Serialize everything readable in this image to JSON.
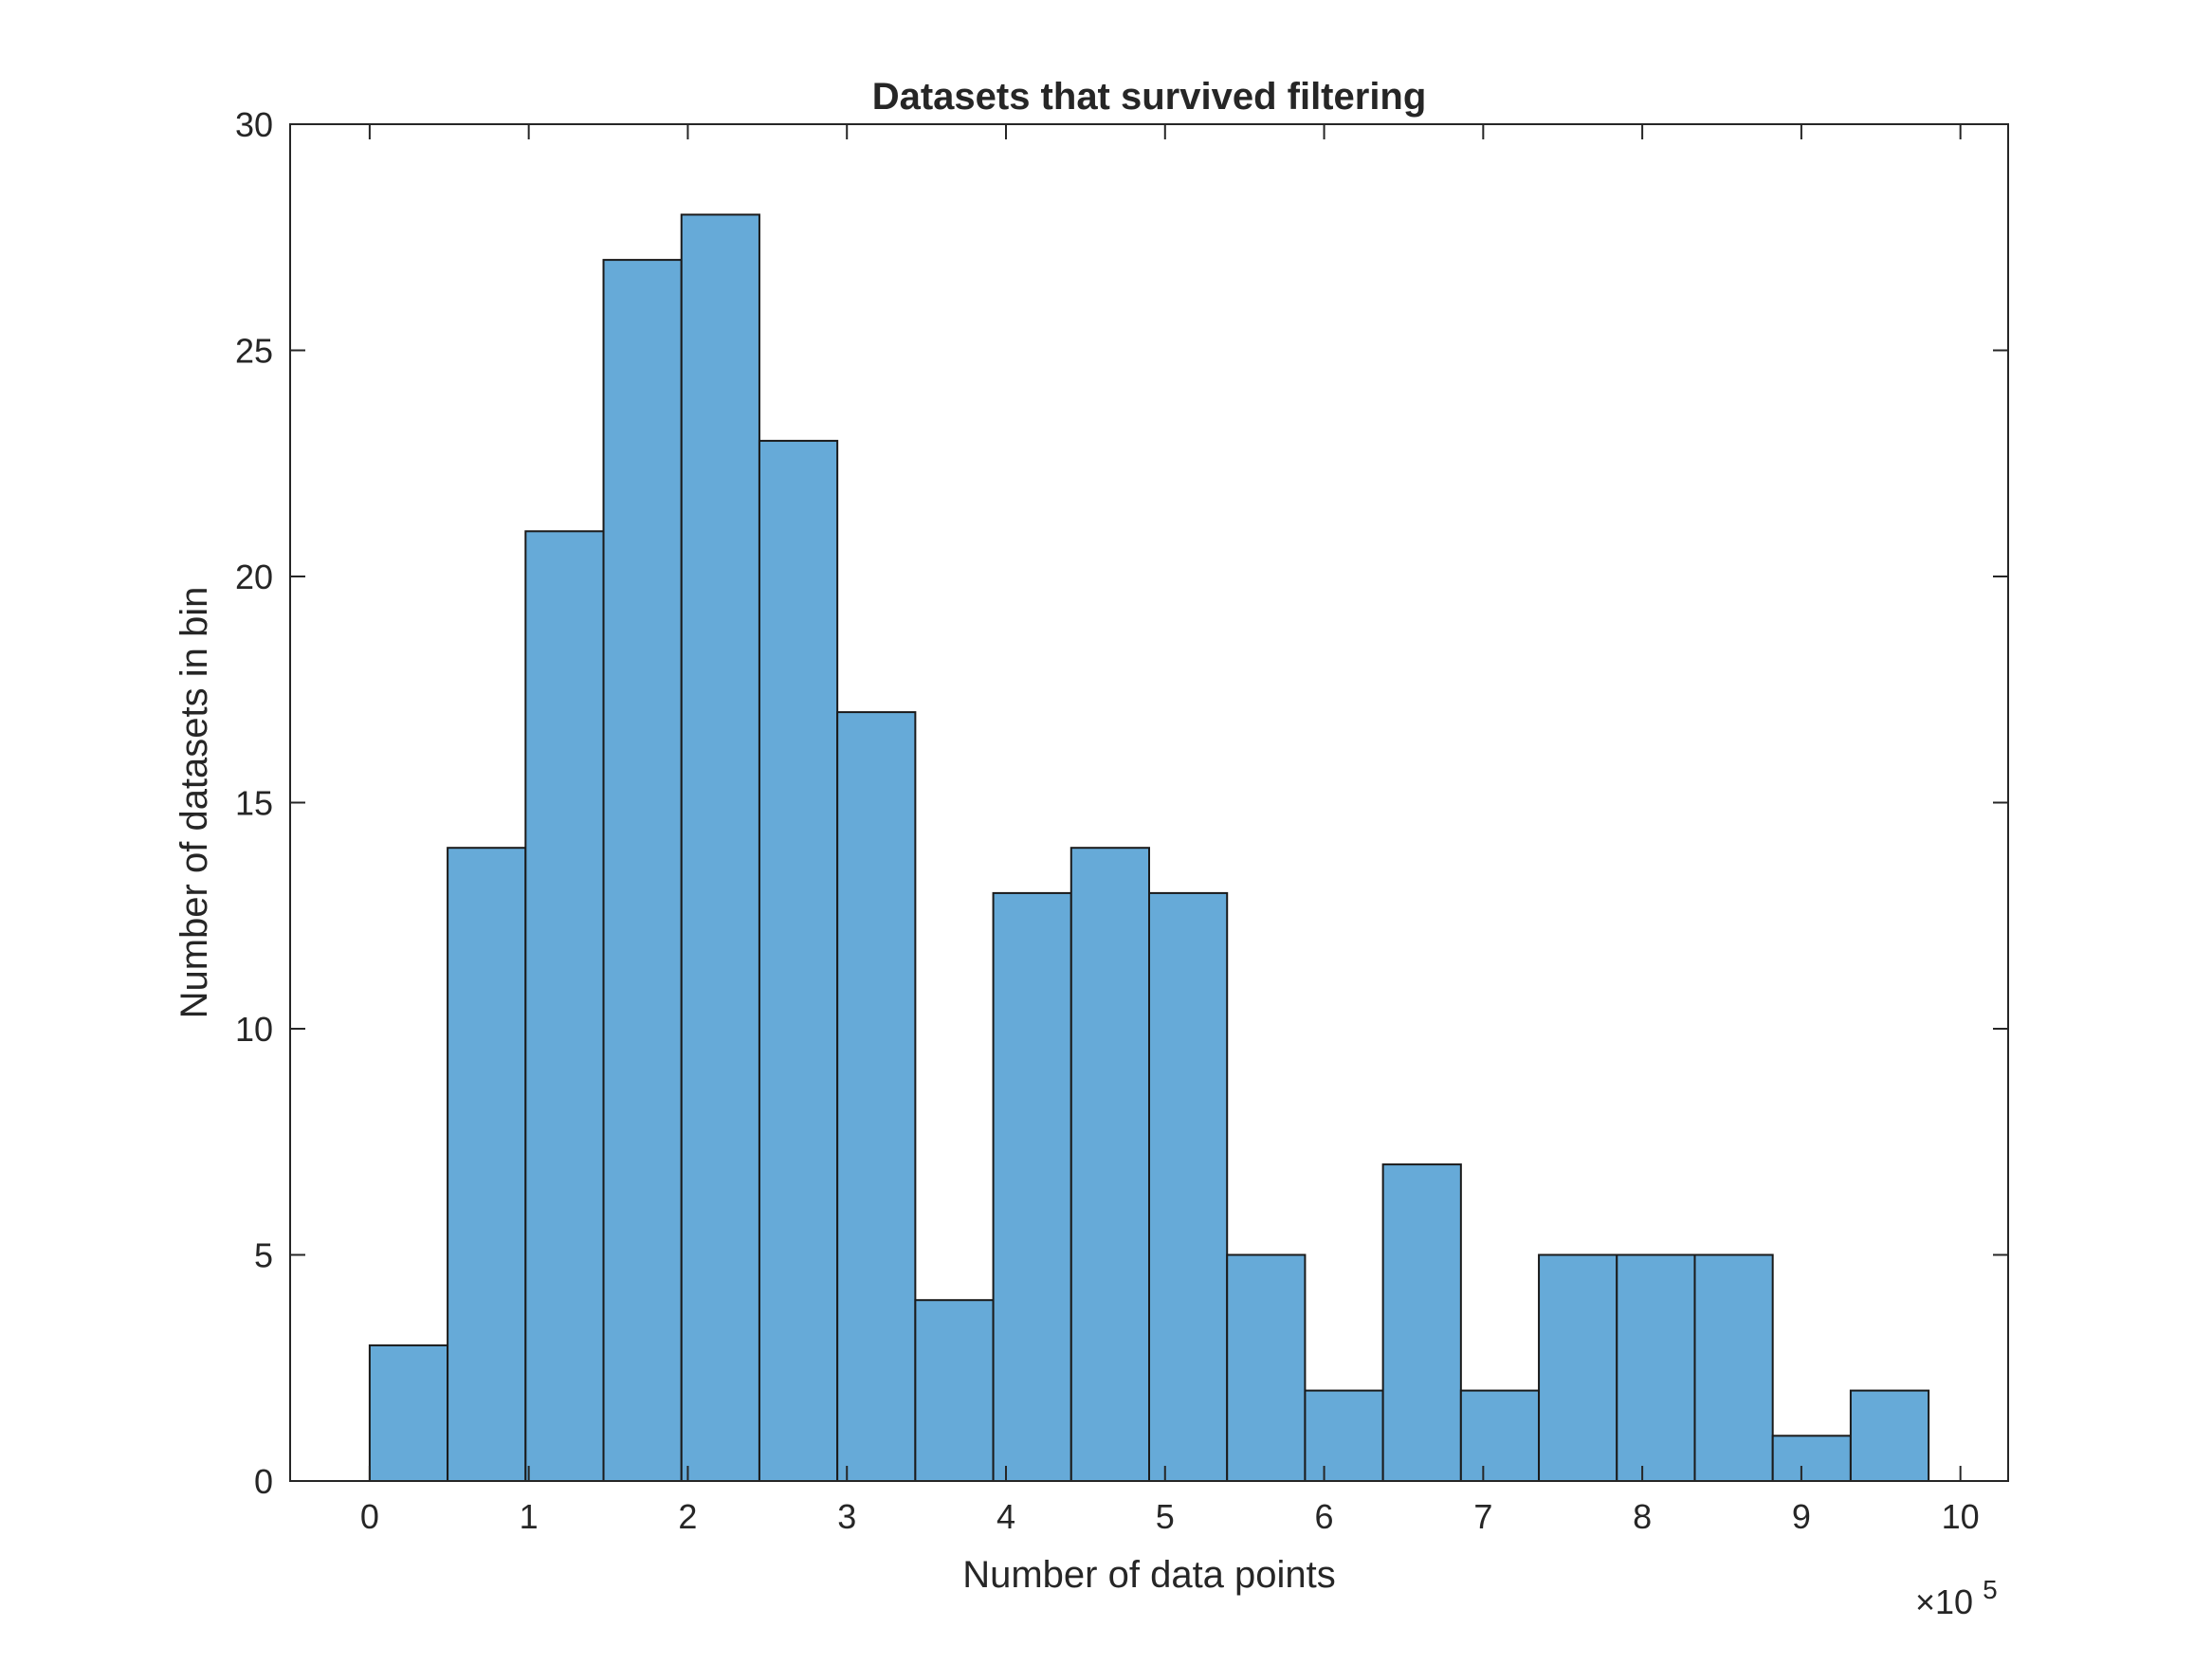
{
  "chart_data": {
    "type": "bar",
    "title": "Datasets that survived filtering",
    "xlabel": "Number of data points",
    "ylabel": "Number of datasets in bin",
    "x_multiplier_label": "×10",
    "x_multiplier_exponent": "5",
    "xlim": [
      -0.5,
      10.3
    ],
    "ylim": [
      0,
      30
    ],
    "xticks": [
      0,
      1,
      2,
      3,
      4,
      5,
      6,
      7,
      8,
      9,
      10
    ],
    "xtick_labels": [
      "0",
      "1",
      "2",
      "3",
      "4",
      "5",
      "6",
      "7",
      "8",
      "9",
      "10"
    ],
    "yticks": [
      0,
      5,
      10,
      15,
      20,
      25,
      30
    ],
    "ytick_labels": [
      "0",
      "5",
      "10",
      "15",
      "20",
      "25",
      "30"
    ],
    "bin_edges": [
      0,
      0.49,
      0.98,
      1.47,
      1.96,
      2.45,
      2.94,
      3.43,
      3.92,
      4.41,
      4.9,
      5.39,
      5.88,
      6.37,
      6.86,
      7.35,
      7.84,
      8.33,
      8.82,
      9.31,
      9.8
    ],
    "values": [
      3,
      14,
      21,
      27,
      28,
      23,
      17,
      4,
      13,
      14,
      13,
      5,
      2,
      7,
      2,
      5,
      5,
      5,
      1,
      2
    ],
    "bar_color": "#66aad8",
    "edge_color": "#1a1a1a",
    "grid": false,
    "legend": "none"
  }
}
